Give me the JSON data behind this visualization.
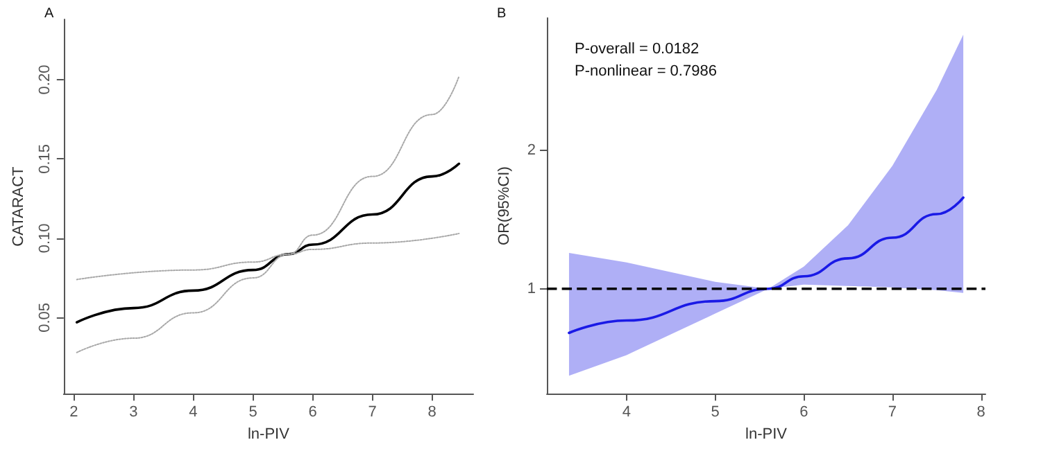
{
  "chart_data": [
    {
      "type": "line",
      "title": "A",
      "xlabel": "ln-PIV",
      "ylabel": "CATARACT",
      "xlim": [
        1.83,
        8.69
      ],
      "ylim": [
        0.002,
        0.238
      ],
      "xticks": [
        2,
        3,
        4,
        5,
        6,
        7,
        8
      ],
      "yticks": [
        {
          "value": 0.05,
          "label": "0.05"
        },
        {
          "value": 0.1,
          "label": "0.10"
        },
        {
          "value": 0.15,
          "label": "0.15"
        },
        {
          "value": 0.2,
          "label": "0.20"
        }
      ],
      "grid": false,
      "marker": "none",
      "line_style": "solid",
      "series": [
        {
          "color": "#000000",
          "x": [
            2.05,
            3,
            4,
            5,
            5.6,
            6,
            7,
            8,
            8.45
          ],
          "values": [
            0.047,
            0.056,
            0.067,
            0.08,
            0.09,
            0.096,
            0.115,
            0.139,
            0.147
          ]
        },
        {
          "color": "#a8a8a8",
          "line_style": "dotted",
          "x": [
            2.05,
            4,
            5,
            5.6,
            6,
            7,
            8.45
          ],
          "values": [
            0.074,
            0.08,
            0.085,
            0.09,
            0.093,
            0.097,
            0.103
          ]
        },
        {
          "color": "#a8a8a8",
          "line_style": "dotted",
          "x": [
            2.05,
            3,
            4,
            5,
            5.6,
            6,
            7,
            8,
            8.45
          ],
          "values": [
            0.028,
            0.037,
            0.053,
            0.075,
            0.09,
            0.102,
            0.139,
            0.178,
            0.202
          ]
        }
      ]
    },
    {
      "type": "line",
      "title": "B",
      "xlabel": "ln-PIV",
      "ylabel": "OR(95%CI)",
      "xlim": [
        3.1,
        8.05
      ],
      "ylim": [
        0.24,
        2.96
      ],
      "xticks": [
        4,
        5,
        6,
        7,
        8
      ],
      "yticks": [
        1,
        2
      ],
      "grid": false,
      "marker": "none",
      "line_style": "solid",
      "annotations": [
        "P-overall = 0.0182",
        "P-nonlinear = 0.7986"
      ],
      "ref_lines": [
        {
          "axis": "y",
          "value": 1,
          "color": "#000000",
          "line_style": "dashed"
        }
      ],
      "series": [
        {
          "color": "#1a1ae6",
          "x": [
            3.35,
            4,
            5,
            5.6,
            6,
            6.5,
            7,
            7.5,
            7.8
          ],
          "values": [
            0.68,
            0.77,
            0.91,
            1,
            1.09,
            1.22,
            1.37,
            1.54,
            1.66
          ],
          "lower": [
            0.37,
            0.52,
            0.82,
            1,
            1.03,
            1.02,
            1.01,
            0.99,
            0.97
          ],
          "upper": [
            1.26,
            1.19,
            1.05,
            1,
            1.16,
            1.46,
            1.89,
            2.44,
            2.84
          ]
        }
      ]
    }
  ]
}
